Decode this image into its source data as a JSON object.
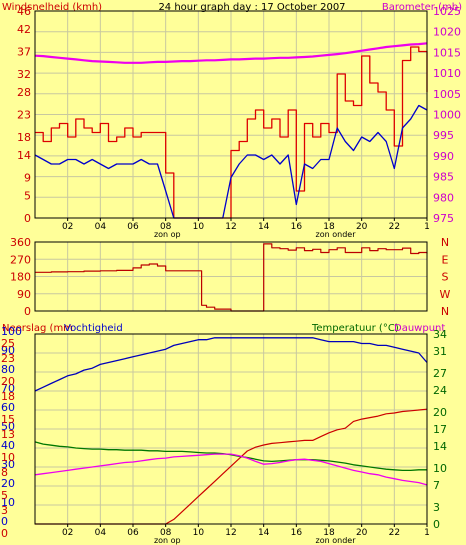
{
  "header": {
    "title": "24 hour graph day : 17 October 2007",
    "left_label": "Windsnelheid (kmh)",
    "right_label": "Barometer (mb)"
  },
  "colors": {
    "background": "#ffff99",
    "grid": "#c8c8a0",
    "wind_gust": "#dd0000",
    "wind_avg": "#0000cc",
    "barometer": "#ee00ee",
    "direction": "#bb0000",
    "rain": "#cc0000",
    "humidity": "#0000bb",
    "temperature": "#007700",
    "dewpoint": "#ee00ee",
    "label_red": "#cc0000",
    "label_blue": "#0000cc",
    "label_green": "#006600",
    "label_magenta": "#cc00cc"
  },
  "x_axis": {
    "tick_labels": [
      "02",
      "04",
      "06",
      "08",
      "10",
      "12",
      "14",
      "16",
      "18",
      "20",
      "22",
      "1"
    ],
    "sunrise_label": "zon op",
    "sunset_label": "zon onder"
  },
  "chart_data": [
    {
      "type": "line",
      "name": "wind-barometer",
      "x": [
        0,
        0.5,
        1,
        1.5,
        2,
        2.5,
        3,
        3.5,
        4,
        4.5,
        5,
        5.5,
        6,
        6.5,
        7,
        7.5,
        8,
        8.5,
        9,
        9.5,
        10,
        10.5,
        11,
        11.5,
        12,
        12.5,
        13,
        13.5,
        14,
        14.5,
        15,
        15.5,
        16,
        16.5,
        17,
        17.5,
        18,
        18.5,
        19,
        19.5,
        20,
        20.5,
        21,
        21.5,
        22,
        22.5,
        23,
        23.5,
        24
      ],
      "series": [
        {
          "name": "Windsnelheid (kmh)",
          "axis": "left",
          "values": [
            19,
            17,
            20,
            21,
            18,
            22,
            20,
            19,
            21,
            17,
            18,
            20,
            18,
            19,
            19,
            19,
            10,
            0,
            0,
            0,
            0,
            0,
            0,
            0,
            15,
            17,
            22,
            24,
            20,
            22,
            18,
            24,
            6,
            21,
            18,
            21,
            19,
            32,
            26,
            25,
            36,
            30,
            28,
            24,
            16,
            35,
            38,
            37,
            28
          ]
        },
        {
          "name": "Gemiddeld",
          "axis": "left",
          "values": [
            14,
            13,
            12,
            12,
            13,
            13,
            12,
            13,
            12,
            11,
            12,
            12,
            12,
            13,
            12,
            12,
            6,
            0,
            0,
            0,
            0,
            0,
            0,
            0,
            9,
            12,
            14,
            14,
            13,
            14,
            12,
            14,
            3,
            12,
            11,
            13,
            13,
            20,
            17,
            15,
            18,
            17,
            19,
            17,
            11,
            20,
            22,
            25,
            24
          ]
        },
        {
          "name": "Barometer (mb)",
          "axis": "right",
          "values": [
            1014.2,
            1014.1,
            1013.9,
            1013.7,
            1013.5,
            1013.3,
            1013.1,
            1012.9,
            1012.8,
            1012.7,
            1012.6,
            1012.5,
            1012.5,
            1012.5,
            1012.6,
            1012.7,
            1012.7,
            1012.8,
            1012.9,
            1012.9,
            1013,
            1013.1,
            1013.1,
            1013.2,
            1013.3,
            1013.3,
            1013.4,
            1013.5,
            1013.5,
            1013.6,
            1013.7,
            1013.7,
            1013.8,
            1013.9,
            1014,
            1014.2,
            1014.4,
            1014.6,
            1014.8,
            1015.1,
            1015.4,
            1015.7,
            1016,
            1016.3,
            1016.5,
            1016.7,
            1016.9,
            1017,
            1017.2
          ]
        }
      ],
      "y_left": {
        "ticks": [
          0,
          5,
          9,
          14,
          18,
          23,
          28,
          32,
          37,
          42,
          46
        ],
        "ylim": [
          0,
          46
        ]
      },
      "y_right": {
        "ticks": [
          975,
          980,
          985,
          990,
          995,
          1000,
          1005,
          1010,
          1015,
          1020,
          1025
        ],
        "ylim": [
          975,
          1025
        ]
      },
      "grid": true
    },
    {
      "type": "line",
      "name": "wind-direction",
      "x": [
        0,
        1,
        2,
        3,
        4,
        5,
        6,
        6.5,
        7,
        7.5,
        8,
        9,
        10,
        10.2,
        10.5,
        11,
        12,
        13,
        13.5,
        14,
        14.5,
        15,
        15.5,
        16,
        16.5,
        17,
        17.5,
        18,
        18.5,
        19,
        20,
        20.5,
        21,
        21.5,
        22,
        22.5,
        23,
        23.5,
        24
      ],
      "series": [
        {
          "name": "Windrichting",
          "values": [
            202,
            204,
            205,
            208,
            210,
            212,
            225,
            240,
            245,
            235,
            210,
            210,
            210,
            30,
            20,
            10,
            0,
            0,
            0,
            350,
            330,
            325,
            318,
            330,
            315,
            322,
            305,
            320,
            330,
            305,
            330,
            315,
            325,
            320,
            320,
            328,
            300,
            305,
            300
          ]
        }
      ],
      "y_ticks": [
        0,
        90,
        180,
        270,
        360
      ],
      "right_labels": [
        "N",
        "W",
        "S",
        "E",
        "N"
      ],
      "ylim": [
        0,
        360
      ],
      "grid": true
    },
    {
      "type": "line",
      "name": "rain-humidity-temperature",
      "header_left": "Neerslag (mm",
      "header_humidity": "Vochtigheid",
      "header_temp": "Temperatuur (°C)",
      "header_dew": "Dauwpunt",
      "x": [
        0,
        0.5,
        1,
        1.5,
        2,
        2.5,
        3,
        3.5,
        4,
        4.5,
        5,
        5.5,
        6,
        6.5,
        7,
        7.5,
        8,
        8.5,
        9,
        9.5,
        10,
        10.5,
        11,
        11.5,
        12,
        12.5,
        13,
        13.5,
        14,
        14.5,
        15,
        15.5,
        16,
        16.5,
        17,
        17.5,
        18,
        18.5,
        19,
        19.5,
        20,
        20.5,
        21,
        21.5,
        22,
        22.5,
        23,
        23.5,
        24
      ],
      "series": [
        {
          "name": "Neerslag (mm",
          "axis": "left_rain",
          "values": [
            0,
            0,
            0,
            0,
            0,
            0,
            0,
            0,
            0,
            0,
            0,
            0,
            0,
            0,
            0,
            0,
            0,
            0.6,
            1.6,
            2.6,
            3.6,
            4.6,
            5.6,
            6.6,
            7.6,
            8.6,
            9.6,
            10.1,
            10.4,
            10.6,
            10.7,
            10.8,
            10.9,
            11,
            11,
            11.5,
            12,
            12.4,
            12.6,
            13.5,
            13.8,
            14,
            14.2,
            14.5,
            14.6,
            14.8,
            14.9,
            15,
            15.1
          ]
        },
        {
          "name": "Vochtigheid",
          "axis": "left_hum",
          "values": [
            70,
            72,
            74,
            76,
            78,
            79,
            81,
            82,
            84,
            85,
            86,
            87,
            88,
            89,
            90,
            91,
            92,
            94,
            95,
            96,
            97,
            97,
            98,
            98,
            98,
            98,
            98,
            98,
            98,
            98,
            98,
            98,
            98,
            98,
            98,
            97,
            96,
            96,
            96,
            96,
            95,
            95,
            94,
            94,
            93,
            92,
            91,
            90,
            85
          ]
        },
        {
          "name": "Temperatuur (°C)",
          "axis": "right",
          "values": [
            14.7,
            14.3,
            14.1,
            13.9,
            13.8,
            13.6,
            13.5,
            13.4,
            13.4,
            13.3,
            13.3,
            13.2,
            13.2,
            13.2,
            13.1,
            13.1,
            13,
            13,
            13,
            12.9,
            12.8,
            12.7,
            12.7,
            12.6,
            12.4,
            12.1,
            11.9,
            11.6,
            11.3,
            11.2,
            11.3,
            11.4,
            11.5,
            11.5,
            11.5,
            11.4,
            11.3,
            11.1,
            10.9,
            10.6,
            10.4,
            10.2,
            10,
            9.8,
            9.7,
            9.6,
            9.6,
            9.7,
            9.7
          ]
        },
        {
          "name": "Dauwpunt",
          "axis": "right",
          "values": [
            8.8,
            9,
            9.2,
            9.4,
            9.6,
            9.8,
            10,
            10.2,
            10.4,
            10.6,
            10.8,
            11,
            11.1,
            11.3,
            11.5,
            11.7,
            11.8,
            12,
            12.1,
            12.2,
            12.3,
            12.4,
            12.5,
            12.5,
            12.5,
            12.2,
            11.8,
            11.2,
            10.7,
            10.8,
            11,
            11.3,
            11.5,
            11.6,
            11.4,
            11.2,
            10.8,
            10.4,
            10,
            9.6,
            9.3,
            9,
            8.8,
            8.4,
            8.1,
            7.8,
            7.6,
            7.4,
            7
          ]
        }
      ],
      "y_left_rain": {
        "ticks": [
          0,
          3,
          5,
          8,
          10,
          13,
          15,
          18,
          20,
          23,
          25
        ],
        "ylim": [
          0,
          25
        ]
      },
      "y_left_hum": {
        "ticks": [
          0,
          10,
          20,
          30,
          40,
          50,
          60,
          70,
          80,
          90,
          100
        ],
        "ylim": [
          0,
          100
        ]
      },
      "y_right": {
        "ticks": [
          0,
          3,
          7,
          10,
          14,
          17,
          20,
          24,
          27,
          31,
          34
        ],
        "ylim": [
          0,
          34
        ]
      },
      "grid": true
    }
  ]
}
